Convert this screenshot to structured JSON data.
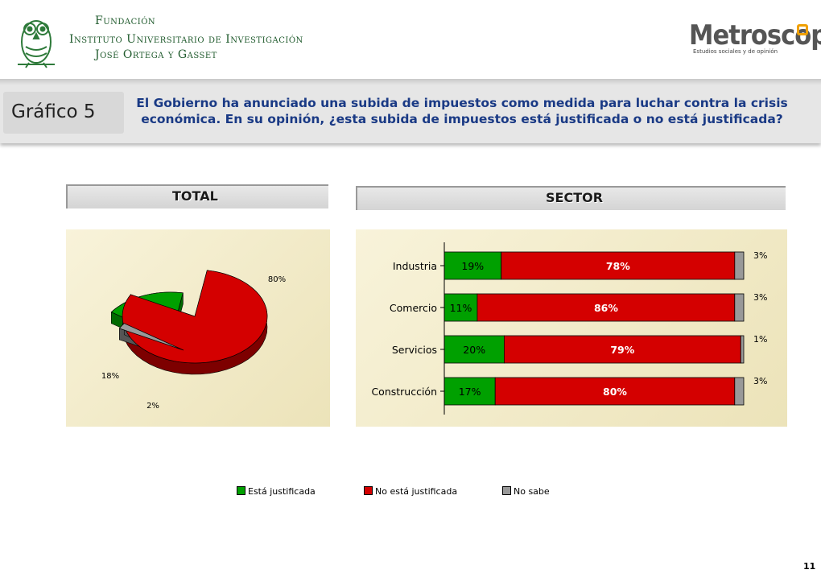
{
  "header": {
    "foundation_lines": [
      "Fundación",
      "Instituto Universitario de Investigación",
      "José Ortega y Gasset"
    ],
    "brand_name": "Metroscopia",
    "brand_tagline": "Estudios sociales y de opinión"
  },
  "banner": {
    "figure_label": "Gráfico 5",
    "question": "El Gobierno ha anunciado una subida de impuestos como medida para luchar contra la crisis económica. En su opinión, ¿esta subida de impuestos está justificada o no está justificada?"
  },
  "sections": {
    "total_title": "TOTAL",
    "sector_title": "SECTOR"
  },
  "legend": [
    {
      "label": "Está justificada",
      "color": "#00a000"
    },
    {
      "label": "No está justificada",
      "color": "#d40000"
    },
    {
      "label": "No sabe",
      "color": "#999999"
    }
  ],
  "page_number": "11",
  "colors": {
    "green": "#00a000",
    "red": "#d40000",
    "gray": "#999999",
    "panel_bg": "#f3ecc9",
    "title_blue": "#1a3a85"
  },
  "chart_data": [
    {
      "type": "pie",
      "title": "TOTAL",
      "labels": [
        "Está justificada",
        "No está justificada",
        "No sabe"
      ],
      "values": [
        18,
        80,
        2
      ],
      "value_labels": [
        "18%",
        "80%",
        "2%"
      ],
      "exploded": true,
      "style": "3d"
    },
    {
      "type": "bar",
      "orientation": "horizontal",
      "stacked": "100%",
      "title": "SECTOR",
      "categories": [
        "Industria",
        "Comercio",
        "Servicios",
        "Construcción"
      ],
      "series": [
        {
          "name": "Está justificada",
          "values": [
            19,
            11,
            20,
            17
          ]
        },
        {
          "name": "No está justificada",
          "values": [
            78,
            86,
            79,
            80
          ]
        },
        {
          "name": "No sabe",
          "values": [
            3,
            3,
            1,
            3
          ]
        }
      ],
      "value_suffix": "%"
    }
  ]
}
